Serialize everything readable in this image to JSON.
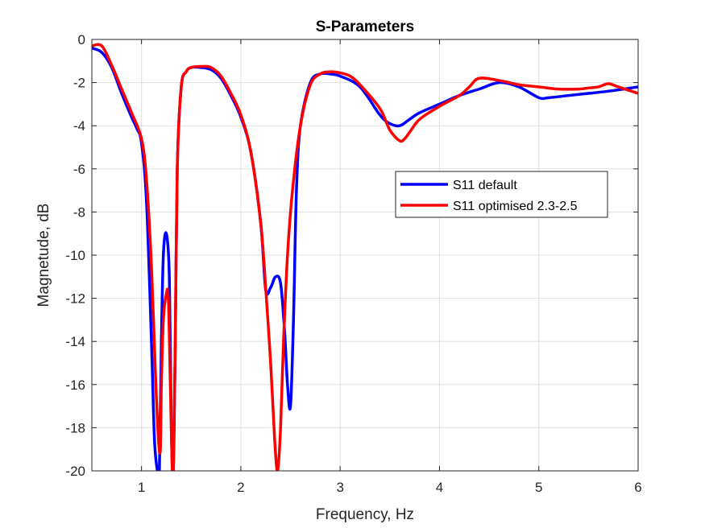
{
  "chart_data": {
    "type": "line",
    "title": "S-Parameters",
    "xlabel": "Frequency, Hz",
    "ylabel": "Magnetude, dB",
    "xlim": [
      0.5,
      6
    ],
    "ylim": [
      -20,
      0
    ],
    "xticks": [
      1,
      2,
      3,
      4,
      5,
      6
    ],
    "xtick_labels": [
      "1",
      "2",
      "3",
      "4",
      "5",
      "6"
    ],
    "yticks": [
      0,
      -2,
      -4,
      -6,
      -8,
      -10,
      -12,
      -14,
      -16,
      -18,
      -20
    ],
    "ytick_labels": [
      "0",
      "-2",
      "-4",
      "-6",
      "-8",
      "-10",
      "-12",
      "-14",
      "-16",
      "-18",
      "-20"
    ],
    "grid": true,
    "legend_position": "right-center",
    "series": [
      {
        "name": "S11 default",
        "color": "#0000ff",
        "x": [
          0.5,
          0.6,
          0.7,
          0.8,
          0.9,
          0.95,
          1.0,
          1.05,
          1.1,
          1.13,
          1.16,
          1.18,
          1.2,
          1.22,
          1.25,
          1.28,
          1.3,
          1.32,
          1.34,
          1.36,
          1.4,
          1.45,
          1.5,
          1.6,
          1.7,
          1.8,
          1.9,
          2.0,
          2.1,
          2.2,
          2.25,
          2.3,
          2.35,
          2.4,
          2.44,
          2.47,
          2.5,
          2.53,
          2.56,
          2.6,
          2.7,
          2.8,
          2.9,
          3.0,
          3.2,
          3.4,
          3.5,
          3.6,
          3.7,
          3.8,
          4.0,
          4.2,
          4.4,
          4.6,
          4.8,
          5.0,
          5.1,
          5.3,
          5.5,
          5.7,
          6.0
        ],
        "y": [
          -0.4,
          -0.6,
          -1.3,
          -2.5,
          -3.6,
          -4.1,
          -4.8,
          -7.5,
          -14.0,
          -18.5,
          -20.0,
          -20.0,
          -14.0,
          -10.0,
          -9.0,
          -11.0,
          -18.0,
          -20.0,
          -14.0,
          -6.0,
          -2.2,
          -1.5,
          -1.3,
          -1.3,
          -1.4,
          -1.8,
          -2.6,
          -3.6,
          -5.2,
          -8.5,
          -11.6,
          -11.5,
          -11.0,
          -11.3,
          -13.5,
          -16.0,
          -17.0,
          -13.0,
          -7.0,
          -4.0,
          -2.0,
          -1.6,
          -1.6,
          -1.7,
          -2.2,
          -3.5,
          -3.9,
          -4.0,
          -3.7,
          -3.4,
          -3.0,
          -2.6,
          -2.3,
          -2.0,
          -2.2,
          -2.7,
          -2.7,
          -2.6,
          -2.5,
          -2.4,
          -2.2
        ]
      },
      {
        "name": "S11 optimised 2.3-2.5",
        "color": "#ff0000",
        "x": [
          0.5,
          0.6,
          0.7,
          0.8,
          0.9,
          1.0,
          1.05,
          1.1,
          1.14,
          1.17,
          1.19,
          1.2,
          1.22,
          1.25,
          1.27,
          1.29,
          1.31,
          1.32,
          1.34,
          1.36,
          1.4,
          1.45,
          1.5,
          1.6,
          1.7,
          1.8,
          1.9,
          2.0,
          2.1,
          2.2,
          2.25,
          2.3,
          2.34,
          2.37,
          2.4,
          2.43,
          2.47,
          2.52,
          2.6,
          2.7,
          2.8,
          2.9,
          3.0,
          3.1,
          3.2,
          3.4,
          3.5,
          3.6,
          3.65,
          3.7,
          3.8,
          4.0,
          4.2,
          4.3,
          4.4,
          4.6,
          4.8,
          5.0,
          5.2,
          5.4,
          5.5,
          5.6,
          5.7,
          5.8,
          6.0
        ],
        "y": [
          -0.3,
          -0.3,
          -1.2,
          -2.3,
          -3.4,
          -4.6,
          -6.5,
          -10.5,
          -15.5,
          -18.5,
          -19.0,
          -16.0,
          -13.0,
          -11.8,
          -12.0,
          -16.0,
          -20.0,
          -20.0,
          -14.0,
          -6.0,
          -2.2,
          -1.5,
          -1.3,
          -1.25,
          -1.3,
          -1.7,
          -2.5,
          -3.5,
          -5.2,
          -8.5,
          -11.5,
          -15.0,
          -18.5,
          -20.0,
          -18.0,
          -14.0,
          -10.0,
          -7.0,
          -4.0,
          -2.1,
          -1.6,
          -1.5,
          -1.55,
          -1.7,
          -2.1,
          -3.2,
          -4.2,
          -4.7,
          -4.6,
          -4.3,
          -3.7,
          -3.1,
          -2.6,
          -2.2,
          -1.8,
          -1.9,
          -2.1,
          -2.2,
          -2.3,
          -2.3,
          -2.25,
          -2.2,
          -2.05,
          -2.2,
          -2.5
        ]
      }
    ]
  }
}
